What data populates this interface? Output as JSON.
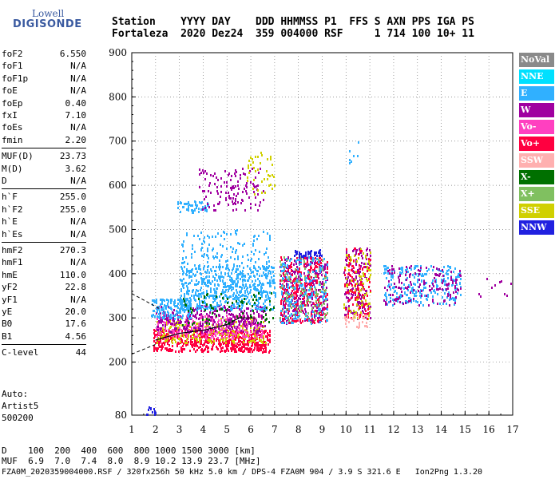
{
  "logo": {
    "line1": "Lowell",
    "line2": "DIGISONDE"
  },
  "header": {
    "labels": "Station    YYYY DAY    DDD HHMMSS P1  FFS S AXN PPS IGA PS",
    "values": "Fortaleza  2020 Dez24  359 004000 RSF     1 714 100 10+ 11"
  },
  "params": [
    {
      "k": "foF2",
      "v": "6.550"
    },
    {
      "k": "foF1",
      "v": "N/A"
    },
    {
      "k": "foF1p",
      "v": "N/A"
    },
    {
      "k": "foE",
      "v": "N/A"
    },
    {
      "k": "foEp",
      "v": "0.40"
    },
    {
      "k": "fxI",
      "v": "7.10"
    },
    {
      "k": "foEs",
      "v": "N/A"
    },
    {
      "k": "fmin",
      "v": "2.20"
    },
    {
      "k": "MUF(D)",
      "v": "23.73"
    },
    {
      "k": "M(D)",
      "v": "3.62"
    },
    {
      "k": "D",
      "v": "N/A"
    },
    {
      "k": "h`F",
      "v": "255.0"
    },
    {
      "k": "h`F2",
      "v": "255.0"
    },
    {
      "k": "h`E",
      "v": "N/A"
    },
    {
      "k": "h`Es",
      "v": "N/A"
    },
    {
      "k": "hmF2",
      "v": "270.3"
    },
    {
      "k": "hmF1",
      "v": "N/A"
    },
    {
      "k": "hmE",
      "v": "110.0"
    },
    {
      "k": "yF2",
      "v": "22.8"
    },
    {
      "k": "yF1",
      "v": "N/A"
    },
    {
      "k": "yE",
      "v": "20.0"
    },
    {
      "k": "B0",
      "v": "17.6"
    },
    {
      "k": "B1",
      "v": "4.56"
    },
    {
      "k": "C-level",
      "v": "44"
    }
  ],
  "auto": {
    "line1": "Auto:",
    "line2": "Artist5",
    "line3": "500200"
  },
  "legend": [
    {
      "label": "NoVal",
      "color": "#8a8a8a"
    },
    {
      "label": "NNE",
      "color": "#00e0ff"
    },
    {
      "label": "E",
      "color": "#30b0ff"
    },
    {
      "label": "W",
      "color": "#a000a0"
    },
    {
      "label": "Vo-",
      "color": "#ff40c0"
    },
    {
      "label": "Vo+",
      "color": "#ff0040"
    },
    {
      "label": "SSW",
      "color": "#ffb0b0"
    },
    {
      "label": "X-",
      "color": "#007000"
    },
    {
      "label": "X+",
      "color": "#80c060"
    },
    {
      "label": "SSE",
      "color": "#d0d000"
    },
    {
      "label": "NNW",
      "color": "#2020e0"
    }
  ],
  "footer": {
    "d_row": "D    100  200  400  600  800 1000 1500 3000 [km]",
    "muf_row": "MUF  6.9  7.0  7.4  8.0  8.9 10.2 13.9 23.7 [MHz]",
    "file_line": "FZA0M_2020359004000.RSF / 320fx256h 50 kHz 5.0 km / DPS-4 FZA0M 904 / 3.9 S 321.6 E   Ion2Png 1.3.20"
  },
  "chart_data": {
    "type": "scatter",
    "xlim": [
      1,
      17
    ],
    "ylim": [
      80,
      900
    ],
    "x_ticks": [
      "1",
      "2",
      "3",
      "4",
      "5",
      "6",
      "7",
      "8",
      "9",
      "10",
      "11",
      "12",
      "13",
      "14",
      "15",
      "16",
      "17"
    ],
    "y_ticks": [
      "80",
      "200",
      "300",
      "400",
      "500",
      "600",
      "700",
      "800",
      "900"
    ],
    "grid": true,
    "legend_position": "right",
    "clusters": [
      {
        "x": [
          1.9,
          6.8
        ],
        "y": [
          225,
          275
        ],
        "color": "#ff0040",
        "density": 0.9
      },
      {
        "x": [
          2.0,
          6.6
        ],
        "y": [
          245,
          300
        ],
        "color": "#d0d000",
        "density": 0.35
      },
      {
        "x": [
          2.0,
          6.5
        ],
        "y": [
          255,
          310
        ],
        "color": "#ff40c0",
        "density": 0.4
      },
      {
        "x": [
          2.0,
          6.6
        ],
        "y": [
          270,
          330
        ],
        "color": "#a000a0",
        "density": 0.4
      },
      {
        "x": [
          1.8,
          3.5
        ],
        "y": [
          300,
          345
        ],
        "color": "#30b0ff",
        "density": 0.7
      },
      {
        "x": [
          3.0,
          7.0
        ],
        "y": [
          320,
          420
        ],
        "color": "#30b0ff",
        "density": 0.55
      },
      {
        "x": [
          3.0,
          6.8
        ],
        "y": [
          420,
          500
        ],
        "color": "#30b0ff",
        "density": 0.15
      },
      {
        "x": [
          2.9,
          4.2
        ],
        "y": [
          540,
          565
        ],
        "color": "#30b0ff",
        "density": 0.6
      },
      {
        "x": [
          3.8,
          6.5
        ],
        "y": [
          545,
          640
        ],
        "color": "#a000a0",
        "density": 0.18
      },
      {
        "x": [
          5.8,
          7.0
        ],
        "y": [
          580,
          680
        ],
        "color": "#d0d000",
        "density": 0.12
      },
      {
        "x": [
          3.0,
          7.0
        ],
        "y": [
          285,
          360
        ],
        "color": "#007000",
        "density": 0.1
      },
      {
        "x": [
          7.2,
          9.2
        ],
        "y": [
          290,
          440
        ],
        "color": "#a000a0",
        "density": 0.4
      },
      {
        "x": [
          7.2,
          9.2
        ],
        "y": [
          290,
          440
        ],
        "color": "#ff0040",
        "density": 0.3
      },
      {
        "x": [
          7.2,
          9.2
        ],
        "y": [
          290,
          440
        ],
        "color": "#80c060",
        "density": 0.15
      },
      {
        "x": [
          7.2,
          9.2
        ],
        "y": [
          290,
          440
        ],
        "color": "#30b0ff",
        "density": 0.2
      },
      {
        "x": [
          7.8,
          9.0
        ],
        "y": [
          440,
          455
        ],
        "color": "#2020e0",
        "density": 0.9
      },
      {
        "x": [
          9.9,
          11.0
        ],
        "y": [
          300,
          460
        ],
        "color": "#a000a0",
        "density": 0.35
      },
      {
        "x": [
          9.9,
          11.0
        ],
        "y": [
          300,
          460
        ],
        "color": "#d0d000",
        "density": 0.2
      },
      {
        "x": [
          9.9,
          11.0
        ],
        "y": [
          300,
          460
        ],
        "color": "#ff0040",
        "density": 0.2
      },
      {
        "x": [
          9.9,
          10.9
        ],
        "y": [
          280,
          310
        ],
        "color": "#ffb0b0",
        "density": 0.4
      },
      {
        "x": [
          11.5,
          14.8
        ],
        "y": [
          330,
          420
        ],
        "color": "#30b0ff",
        "density": 0.3
      },
      {
        "x": [
          11.5,
          14.8
        ],
        "y": [
          330,
          420
        ],
        "color": "#a000a0",
        "density": 0.18
      },
      {
        "x": [
          15.5,
          17.0
        ],
        "y": [
          350,
          390
        ],
        "color": "#a000a0",
        "density": 0.06
      },
      {
        "x": [
          10.0,
          10.5
        ],
        "y": [
          640,
          700
        ],
        "color": "#30b0ff",
        "density": 0.08
      },
      {
        "x": [
          1.5,
          2.0
        ],
        "y": [
          82,
          100
        ],
        "color": "#2020e0",
        "density": 0.5
      }
    ],
    "profile_curve": [
      [
        2.0,
        250
      ],
      [
        3.0,
        265
      ],
      [
        4.0,
        272
      ],
      [
        5.0,
        285
      ],
      [
        5.5,
        300
      ],
      [
        6.2,
        300
      ]
    ],
    "dashed_lines": [
      {
        "from": [
          1,
          355
        ],
        "to": [
          2.2,
          320
        ]
      },
      {
        "from": [
          1,
          218
        ],
        "to": [
          2.0,
          240
        ]
      }
    ]
  }
}
